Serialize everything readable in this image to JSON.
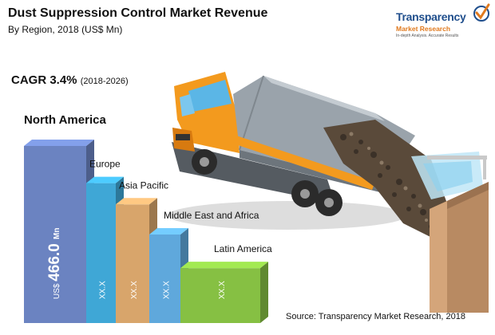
{
  "header": {
    "title": "Dust Suppression Control Market Revenue",
    "subtitle": "By Region, 2018 (US$ Mn)"
  },
  "cagr": {
    "label": "CAGR 3.4%",
    "period": "(2018-2026)"
  },
  "logo": {
    "brand": "Transparency",
    "sub": "Market Research",
    "tagline": "In-depth Analysis. Accurate Results"
  },
  "source": "Source: Transparency Market Research, 2018",
  "chart_data": {
    "type": "bar",
    "title": "Dust Suppression Control Market Revenue",
    "subtitle": "By Region, 2018 (US$ Mn)",
    "categories": [
      "North America",
      "Europe",
      "Asia Pacific",
      "Middle East and Africa",
      "Latin America"
    ],
    "value_labels": [
      "US$ 466.0 Mn",
      "XX.X",
      "XX.X",
      "XX.X",
      "XX.X"
    ],
    "values": [
      466.0,
      null,
      null,
      null,
      null
    ],
    "relative_heights": [
      1.0,
      0.79,
      0.67,
      0.5,
      0.31
    ],
    "colors": [
      "#6b83c1",
      "#3fa7d6",
      "#d8a56b",
      "#5fa8dc",
      "#86c043"
    ],
    "annotation": "CAGR 3.4% (2018-2026)",
    "legend": "none",
    "grid": false
  }
}
